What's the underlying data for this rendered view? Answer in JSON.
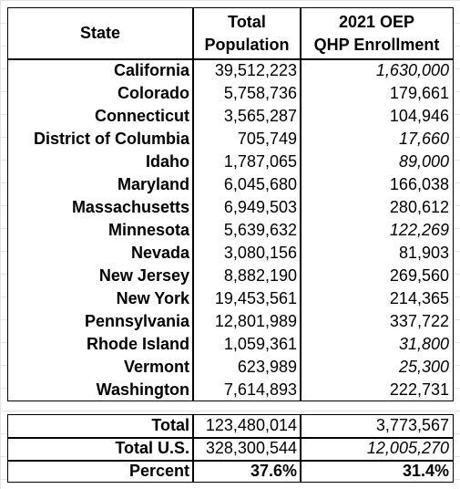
{
  "table": {
    "headers": [
      [
        "State"
      ],
      [
        "Total",
        "Population"
      ],
      [
        "2021 OEP",
        "QHP Enrollment"
      ]
    ],
    "rows": [
      {
        "state": "California",
        "population": "39,512,223",
        "enrollment": "1,630,000",
        "enrollment_style": "italic"
      },
      {
        "state": "Colorado",
        "population": "5,758,736",
        "enrollment": "179,661",
        "enrollment_style": "normal"
      },
      {
        "state": "Connecticut",
        "population": "3,565,287",
        "enrollment": "104,946",
        "enrollment_style": "normal"
      },
      {
        "state": "District of Columbia",
        "population": "705,749",
        "enrollment": "17,660",
        "enrollment_style": "italic"
      },
      {
        "state": "Idaho",
        "population": "1,787,065",
        "enrollment": "89,000",
        "enrollment_style": "italic"
      },
      {
        "state": "Maryland",
        "population": "6,045,680",
        "enrollment": "166,038",
        "enrollment_style": "normal"
      },
      {
        "state": "Massachusetts",
        "population": "6,949,503",
        "enrollment": "280,612",
        "enrollment_style": "normal"
      },
      {
        "state": "Minnesota",
        "population": "5,639,632",
        "enrollment": "122,269",
        "enrollment_style": "italic"
      },
      {
        "state": "Nevada",
        "population": "3,080,156",
        "enrollment": "81,903",
        "enrollment_style": "normal"
      },
      {
        "state": "New Jersey",
        "population": "8,882,190",
        "enrollment": "269,560",
        "enrollment_style": "normal"
      },
      {
        "state": "New York",
        "population": "19,453,561",
        "enrollment": "214,365",
        "enrollment_style": "normal"
      },
      {
        "state": "Pennsylvania",
        "population": "12,801,989",
        "enrollment": "337,722",
        "enrollment_style": "normal"
      },
      {
        "state": "Rhode Island",
        "population": "1,059,361",
        "enrollment": "31,800",
        "enrollment_style": "italic"
      },
      {
        "state": "Vermont",
        "population": "623,989",
        "enrollment": "25,300",
        "enrollment_style": "italic"
      },
      {
        "state": "Washington",
        "population": "7,614,893",
        "enrollment": "222,731",
        "enrollment_style": "normal"
      }
    ],
    "summary": [
      {
        "label": "Total",
        "population": "123,480,014",
        "enrollment": "3,773,567",
        "population_style": "normal",
        "enrollment_style": "normal"
      },
      {
        "label": "Total U.S.",
        "population": "328,300,544",
        "enrollment": "12,005,270",
        "population_style": "normal",
        "enrollment_style": "italic"
      },
      {
        "label": "Percent",
        "population": "37.6%",
        "enrollment": "31.4%",
        "population_style": "bold",
        "enrollment_style": "bold"
      }
    ]
  }
}
